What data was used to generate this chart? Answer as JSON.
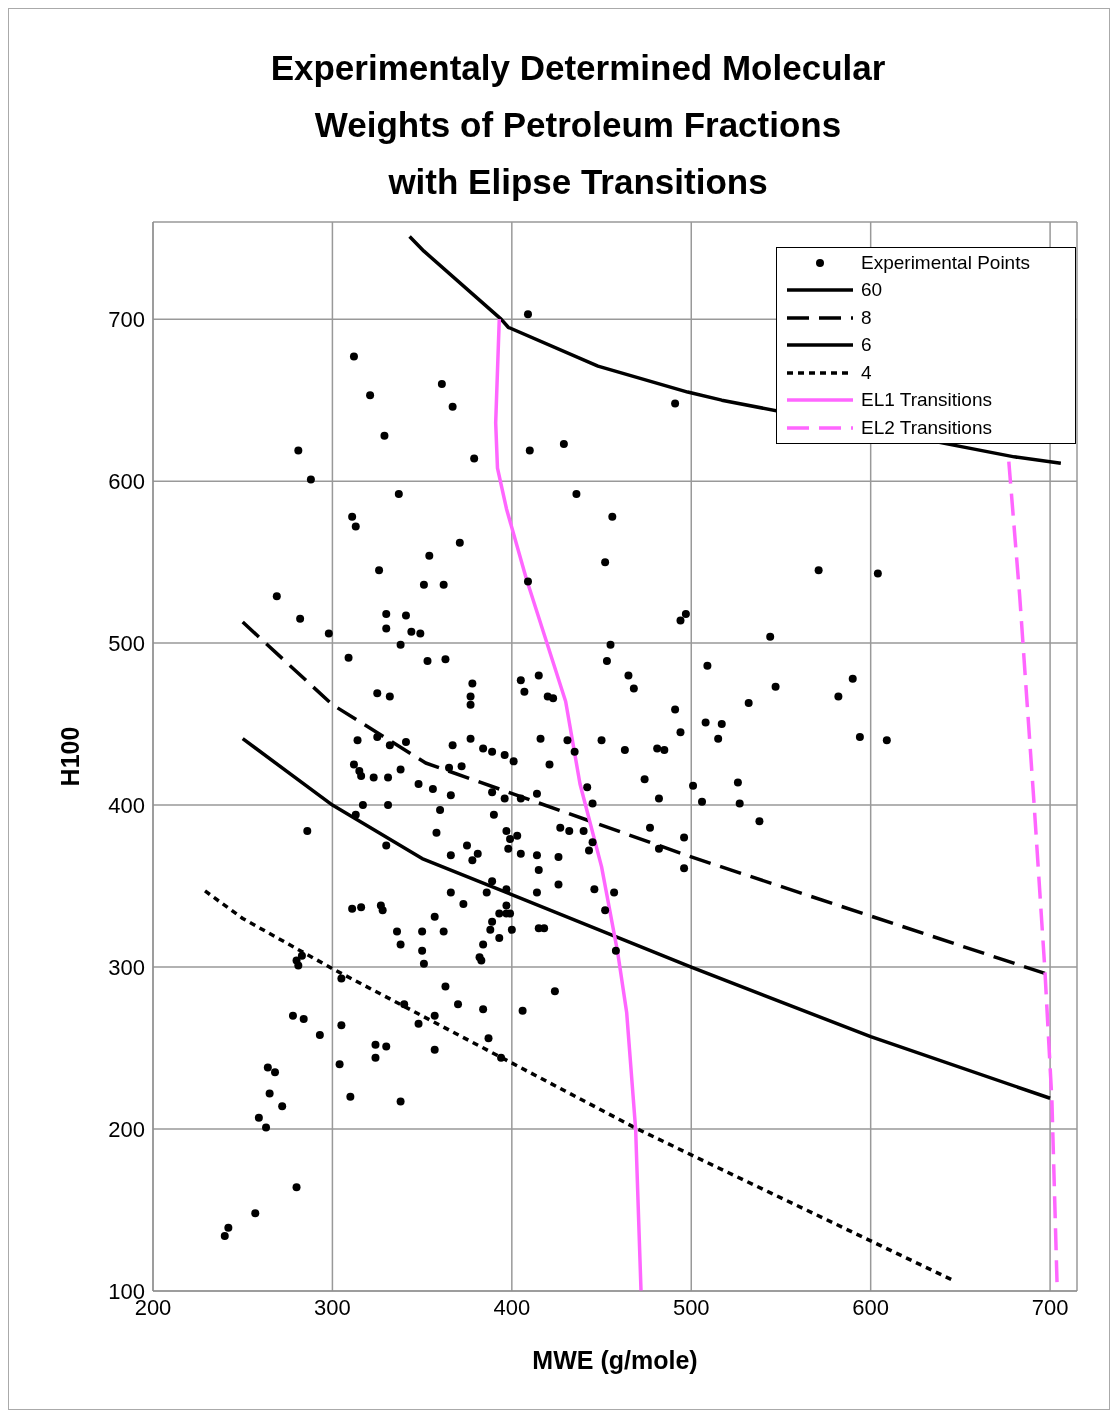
{
  "chart_data": {
    "type": "scatter",
    "title": "Experimentaly Determined Molecular\nWeights of Petroleum Fractions\nwith Elipse Transitions",
    "xlabel": "MWE (g/mole)",
    "ylabel": "H100",
    "xlim": [
      200,
      715
    ],
    "ylim": [
      100,
      760
    ],
    "xticks": [
      200,
      300,
      400,
      500,
      600,
      700
    ],
    "yticks": [
      100,
      200,
      300,
      400,
      500,
      600,
      700
    ],
    "grid": true,
    "legend": "top right",
    "series": [
      {
        "name": "Experimental Points",
        "color": "#000000",
        "marker": "circle",
        "x": [
          409,
          312,
          321,
          361,
          367,
          329,
          281,
          288,
          379,
          410,
          429,
          337,
          436,
          491,
          311,
          313,
          456,
          371,
          354,
          326,
          452,
          269,
          351,
          362,
          409,
          282,
          330,
          341,
          330,
          344,
          349,
          298,
          338,
          309,
          353,
          363,
          455,
          453,
          497,
          494,
          571,
          604,
          544,
          378,
          377,
          377,
          405,
          407,
          415,
          420,
          423,
          325,
          332,
          465,
          468,
          509,
          491,
          494,
          508,
          517,
          515,
          532,
          547,
          582,
          590,
          594,
          609,
          314,
          325,
          332,
          341,
          367,
          377,
          384,
          389,
          396,
          401,
          416,
          431,
          435,
          450,
          463,
          481,
          485,
          421,
          365,
          372,
          315,
          312,
          316,
          323,
          331,
          338,
          348,
          356,
          366,
          360,
          317,
          331,
          313,
          389,
          396,
          405,
          414,
          442,
          474,
          482,
          501,
          506,
          526,
          527,
          538,
          445,
          286,
          358,
          366,
          330,
          375,
          378,
          381,
          390,
          397,
          403,
          399,
          405,
          398,
          414,
          415,
          426,
          427,
          432,
          440,
          443,
          445,
          477,
          482,
          496,
          496,
          366,
          373,
          389,
          386,
          397,
          397,
          414,
          426,
          446,
          452,
          457,
          458,
          311,
          316,
          327,
          328,
          357,
          362,
          336,
          350,
          338,
          350,
          351,
          393,
          397,
          399,
          389,
          388,
          393,
          400,
          415,
          418,
          382,
          383,
          384,
          280,
          283,
          281,
          305,
          363,
          370,
          340,
          357,
          384,
          348,
          406,
          424,
          278,
          284,
          293,
          305,
          324,
          330,
          324,
          304,
          357,
          394,
          387,
          264,
          268,
          265,
          272,
          259,
          263,
          310,
          338,
          280,
          257,
          242,
          240
        ],
        "values": [
          703,
          677,
          653,
          660,
          646,
          628,
          619,
          601,
          614,
          619,
          623,
          592,
          592,
          648,
          578,
          572,
          578,
          562,
          554,
          545,
          550,
          529,
          536,
          536,
          538,
          515,
          518,
          517,
          509,
          507,
          506,
          506,
          499,
          491,
          489,
          490,
          499,
          489,
          518,
          514,
          545,
          543,
          504,
          475,
          467,
          462,
          477,
          470,
          480,
          467,
          466,
          469,
          467,
          480,
          472,
          486,
          459,
          445,
          451,
          450,
          441,
          463,
          473,
          467,
          478,
          442,
          440,
          440,
          442,
          437,
          439,
          437,
          441,
          435,
          433,
          431,
          427,
          441,
          440,
          433,
          440,
          434,
          435,
          434,
          425,
          423,
          424,
          421,
          425,
          418,
          417,
          417,
          422,
          413,
          410,
          406,
          397,
          400,
          400,
          394,
          408,
          404,
          404,
          407,
          411,
          416,
          404,
          412,
          402,
          414,
          401,
          390,
          401,
          384,
          383,
          369,
          375,
          375,
          366,
          370,
          394,
          384,
          381,
          379,
          370,
          373,
          369,
          360,
          368,
          386,
          384,
          384,
          372,
          377,
          386,
          373,
          380,
          361,
          346,
          339,
          353,
          346,
          348,
          338,
          346,
          351,
          348,
          335,
          346,
          310,
          336,
          337,
          338,
          335,
          331,
          322,
          322,
          322,
          314,
          310,
          302,
          333,
          333,
          333,
          328,
          323,
          318,
          323,
          324,
          324,
          306,
          304,
          314,
          304,
          307,
          301,
          293,
          288,
          277,
          277,
          270,
          274,
          265,
          273,
          285,
          270,
          268,
          258,
          264,
          252,
          251,
          244,
          240,
          249,
          244,
          256,
          238,
          235,
          222,
          214,
          207,
          201,
          220,
          217,
          164,
          148,
          139,
          134
        ]
      },
      {
        "name": "60",
        "type": "line",
        "color": "#000000",
        "line_style": "solid",
        "x": [
          343,
          351,
          394,
          398,
          448,
          498,
          517,
          680,
          706
        ],
        "values": [
          751,
          742,
          700,
          695,
          671,
          655,
          650,
          615,
          611
        ]
      },
      {
        "name": "8",
        "type": "line",
        "color": "#000000",
        "line_style": "dashed",
        "x": [
          250,
          300,
          352,
          500,
          700
        ],
        "values": [
          513,
          462,
          426,
          368,
          295
        ]
      },
      {
        "name": "6",
        "type": "line",
        "color": "#000000",
        "line_style": "solid",
        "x": [
          250,
          300,
          350,
          500,
          600,
          700
        ],
        "values": [
          441,
          400,
          367,
          300,
          257,
          219
        ]
      },
      {
        "name": "4",
        "type": "line",
        "color": "#000000",
        "line_style": "dotted",
        "x": [
          229,
          250,
          300,
          470,
          647
        ],
        "values": [
          347,
          330,
          299,
          200,
          106
        ]
      },
      {
        "name": "EL1 Transitions",
        "type": "line",
        "color": "#ff66ff",
        "line_style": "solid",
        "x": [
          393,
          391,
          392,
          397,
          408,
          430,
          438,
          450,
          459,
          464,
          469,
          472
        ],
        "values": [
          700,
          636,
          608,
          583,
          540,
          464,
          413,
          362,
          309,
          272,
          200,
          100
        ]
      },
      {
        "name": "EL2 Transitions",
        "type": "line",
        "color": "#ff66ff",
        "line_style": "dashed",
        "x": [
          677,
          683,
          691,
          697,
          701,
          704
        ],
        "values": [
          612,
          530,
          402,
          300,
          218,
          100
        ]
      }
    ]
  }
}
